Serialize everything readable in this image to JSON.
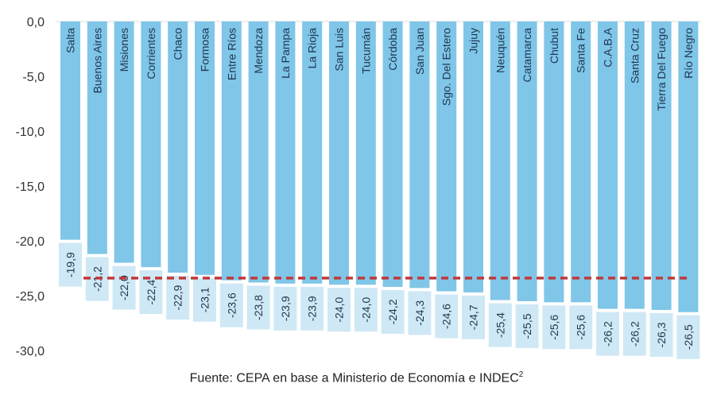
{
  "chart_data": {
    "type": "bar",
    "title": "",
    "xlabel": "",
    "ylabel": "",
    "ylim": [
      -30,
      0
    ],
    "yticks": [
      "0,0",
      "-5,0",
      "-10,0",
      "-15,0",
      "-20,0",
      "-25,0",
      "-30,0"
    ],
    "ytick_values": [
      0,
      -5,
      -10,
      -15,
      -20,
      -25,
      -30
    ],
    "categories": [
      "Salta",
      "Buenos Aires",
      "Misiones",
      "Corrientes",
      "Chaco",
      "Formosa",
      "Entre Ríos",
      "Mendoza",
      "La Pampa",
      "La Rioja",
      "San Luis",
      "Tucumán",
      "Córdoba",
      "San Juan",
      "Sgo. Del Estero",
      "Jujuy",
      "Neuquén",
      "Catamarca",
      "Chubut",
      "Santa Fe",
      "C.A.B.A",
      "Santa Cruz",
      "Tierra Del Fuego",
      "Río Negro"
    ],
    "values": [
      -19.9,
      -21.2,
      -22.0,
      -22.4,
      -22.9,
      -23.1,
      -23.6,
      -23.8,
      -23.9,
      -23.9,
      -24.0,
      -24.0,
      -24.2,
      -24.3,
      -24.6,
      -24.7,
      -25.4,
      -25.5,
      -25.6,
      -25.6,
      -26.2,
      -26.2,
      -26.3,
      -26.5
    ],
    "value_labels": [
      "-19,9",
      "-21,2",
      "-22,0",
      "-22,4",
      "-22,9",
      "-23,1",
      "-23,6",
      "-23,8",
      "-23,9",
      "-23,9",
      "-24,0",
      "-24,0",
      "-24,2",
      "-24,3",
      "-24,6",
      "-24,7",
      "-25,4",
      "-25,5",
      "-25,6",
      "-25,6",
      "-26,2",
      "-26,2",
      "-26,3",
      "-26,5"
    ],
    "reference_line": {
      "value": -23.4,
      "style": "dashed"
    },
    "grid": false,
    "colors": {
      "bar": "#7fc6e8",
      "label_box": "#cfe8f5",
      "reference_line": "#c0393b"
    }
  },
  "source": {
    "text": "Fuente: CEPA en base a Ministerio de Economía e INDEC",
    "footnote": "2"
  }
}
